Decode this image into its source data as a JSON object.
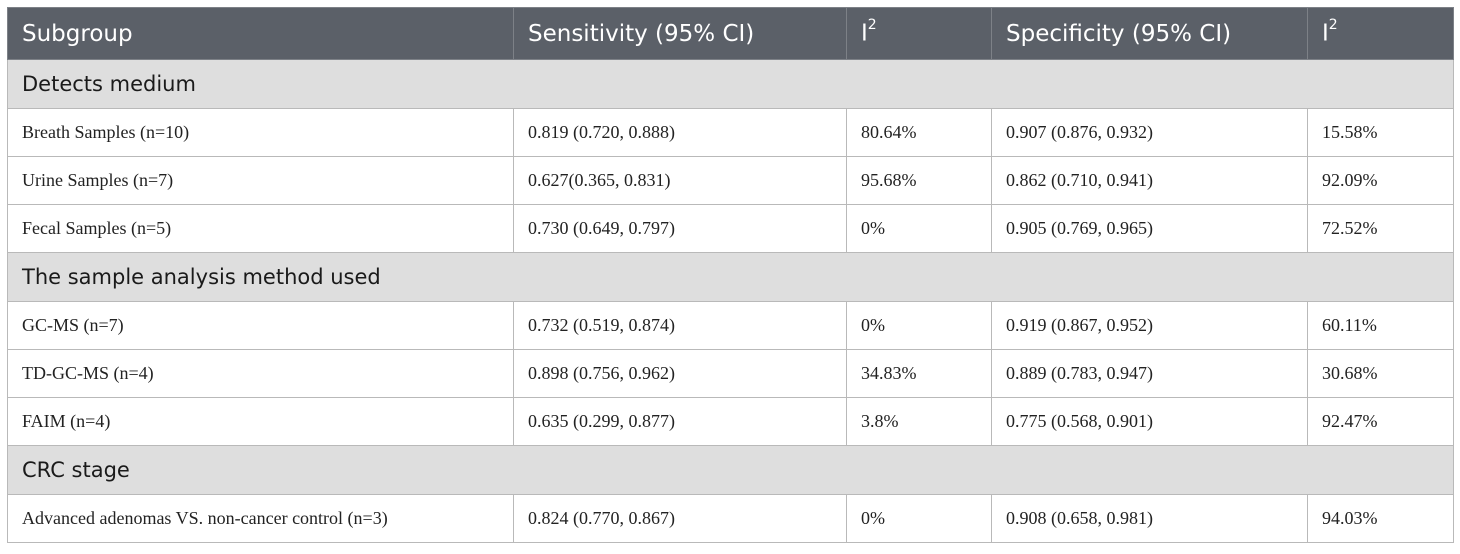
{
  "table": {
    "headers": {
      "subgroup": "Subgroup",
      "sensitivity": "Sensitivity (95% CI)",
      "i2_sens_base": "I",
      "i2_sens_sup": "2",
      "specificity": "Specificity (95% CI)",
      "i2_spec_base": "I",
      "i2_spec_sup": "2"
    },
    "sections": [
      {
        "title": "Detects medium",
        "rows": [
          {
            "subgroup": "Breath Samples (n=10)",
            "sensitivity": "0.819 (0.720, 0.888)",
            "i2_sens": "80.64%",
            "specificity": "0.907 (0.876, 0.932)",
            "i2_spec": "15.58%"
          },
          {
            "subgroup": "Urine Samples (n=7)",
            "sensitivity": "0.627(0.365, 0.831)",
            "i2_sens": "95.68%",
            "specificity": "0.862 (0.710, 0.941)",
            "i2_spec": "92.09%"
          },
          {
            "subgroup": "Fecal Samples (n=5)",
            "sensitivity": "0.730 (0.649, 0.797)",
            "i2_sens": "0%",
            "specificity": "0.905 (0.769, 0.965)",
            "i2_spec": "72.52%"
          }
        ]
      },
      {
        "title": "The sample analysis method used",
        "rows": [
          {
            "subgroup": "GC-MS (n=7)",
            "sensitivity": "0.732 (0.519, 0.874)",
            "i2_sens": "0%",
            "specificity": "0.919 (0.867, 0.952)",
            "i2_spec": "60.11%"
          },
          {
            "subgroup": "TD-GC-MS (n=4)",
            "sensitivity": "0.898 (0.756, 0.962)",
            "i2_sens": "34.83%",
            "specificity": "0.889 (0.783, 0.947)",
            "i2_spec": "30.68%"
          },
          {
            "subgroup": "FAIM (n=4)",
            "sensitivity": "0.635 (0.299, 0.877)",
            "i2_sens": "3.8%",
            "specificity": "0.775 (0.568, 0.901)",
            "i2_spec": "92.47%"
          }
        ]
      },
      {
        "title": "CRC stage",
        "rows": [
          {
            "subgroup": "Advanced adenomas VS. non-cancer control (n=3)",
            "sensitivity": "0.824 (0.770, 0.867)",
            "i2_sens": "0%",
            "specificity": "0.908 (0.658, 0.981)",
            "i2_spec": "94.03%"
          }
        ]
      }
    ]
  }
}
